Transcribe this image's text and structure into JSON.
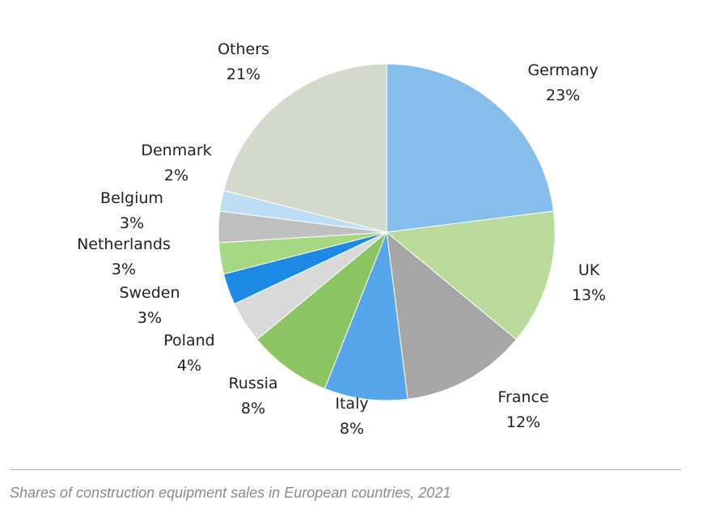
{
  "chart_data": {
    "type": "pie",
    "title": "",
    "start": "top",
    "direction": "clockwise",
    "slices": [
      {
        "label": "Germany",
        "value": 23,
        "display": "23%",
        "color": "#85BDEB"
      },
      {
        "label": "UK",
        "value": 13,
        "display": "13%",
        "color": "#B8DB9B"
      },
      {
        "label": "France",
        "value": 12,
        "display": "12%",
        "color": "#A6A6A6"
      },
      {
        "label": "Italy",
        "value": 8,
        "display": "8%",
        "color": "#55A5E8"
      },
      {
        "label": "Russia",
        "value": 8,
        "display": "8%",
        "color": "#8CC464"
      },
      {
        "label": "Poland",
        "value": 4,
        "display": "4%",
        "color": "#D9D9D9"
      },
      {
        "label": "Sweden",
        "value": 3,
        "display": "3%",
        "color": "#1E88E5"
      },
      {
        "label": "Netherlands",
        "value": 3,
        "display": "3%",
        "color": "#A6D785"
      },
      {
        "label": "Belgium",
        "value": 3,
        "display": "3%",
        "color": "#BFBFBF"
      },
      {
        "label": "Denmark",
        "value": 2,
        "display": "2%",
        "color": "#BDDDF5"
      },
      {
        "label": "Others",
        "value": 21,
        "display": "21%",
        "color": "#D3D9CB"
      }
    ]
  },
  "caption": "Shares of construction equipment sales in European countries, 2021"
}
